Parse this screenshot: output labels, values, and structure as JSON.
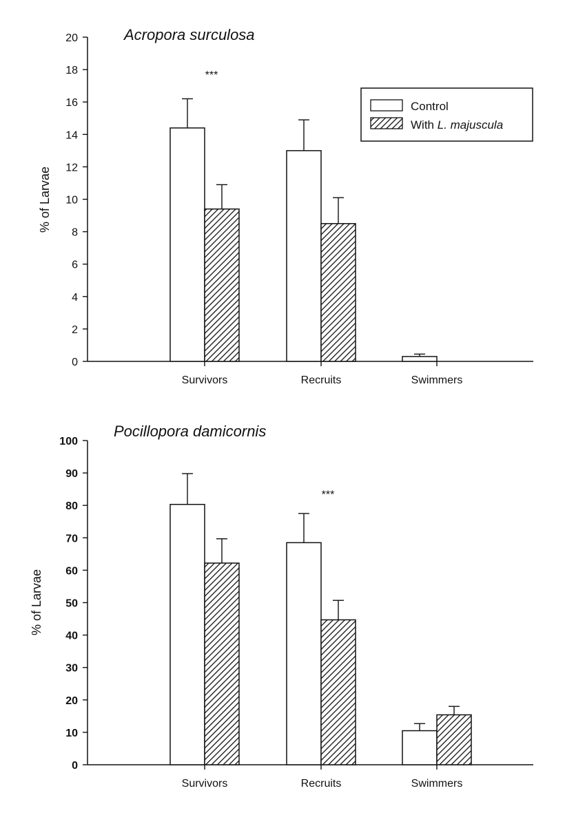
{
  "colors": {
    "ink": "#111111",
    "control_fill": "#ffffff",
    "hatch": "#111111",
    "background": "#ffffff"
  },
  "legend": {
    "control": "Control",
    "treatment_prefix": "With ",
    "treatment_species": "L. majuscula"
  },
  "chart_data": [
    {
      "type": "bar",
      "title": "Acropora surculosa",
      "xlabel": "",
      "ylabel": "% of Larvae",
      "categories": [
        "Survivors",
        "Recruits",
        "Swimmers"
      ],
      "ylim": [
        0,
        20
      ],
      "yticks": [
        "0",
        "2",
        "4",
        "6",
        "8",
        "10",
        "12",
        "14",
        "16",
        "18",
        "20"
      ],
      "grid": false,
      "legend_position": "top-right",
      "series": [
        {
          "name": "Control",
          "style": "open",
          "values": [
            14.4,
            13.0,
            0.3
          ],
          "errors": [
            1.8,
            1.9,
            0.15
          ]
        },
        {
          "name": "With L. majuscula",
          "style": "hatched",
          "values": [
            9.4,
            8.5,
            0
          ],
          "errors": [
            1.5,
            1.6,
            0
          ]
        }
      ],
      "annotations": [
        {
          "text": "***",
          "category": "Survivors",
          "y": 17.8
        }
      ]
    },
    {
      "type": "bar",
      "title": "Pocillopora damicornis",
      "xlabel": "",
      "ylabel": "% of Larvae",
      "categories": [
        "Survivors",
        "Recruits",
        "Swimmers"
      ],
      "ylim": [
        0,
        100
      ],
      "yticks": [
        "0",
        "10",
        "20",
        "30",
        "40",
        "50",
        "60",
        "70",
        "80",
        "90",
        "100"
      ],
      "grid": false,
      "legend_position": "none",
      "series": [
        {
          "name": "Control",
          "style": "open",
          "values": [
            80.3,
            68.5,
            10.5
          ],
          "errors": [
            9.5,
            9.0,
            2.2
          ]
        },
        {
          "name": "With L. majuscula",
          "style": "hatched",
          "values": [
            62.2,
            44.7,
            15.4
          ],
          "errors": [
            7.5,
            6.0,
            2.6
          ]
        }
      ],
      "annotations": [
        {
          "text": "***",
          "category": "Recruits",
          "y": 84.0
        }
      ]
    }
  ]
}
